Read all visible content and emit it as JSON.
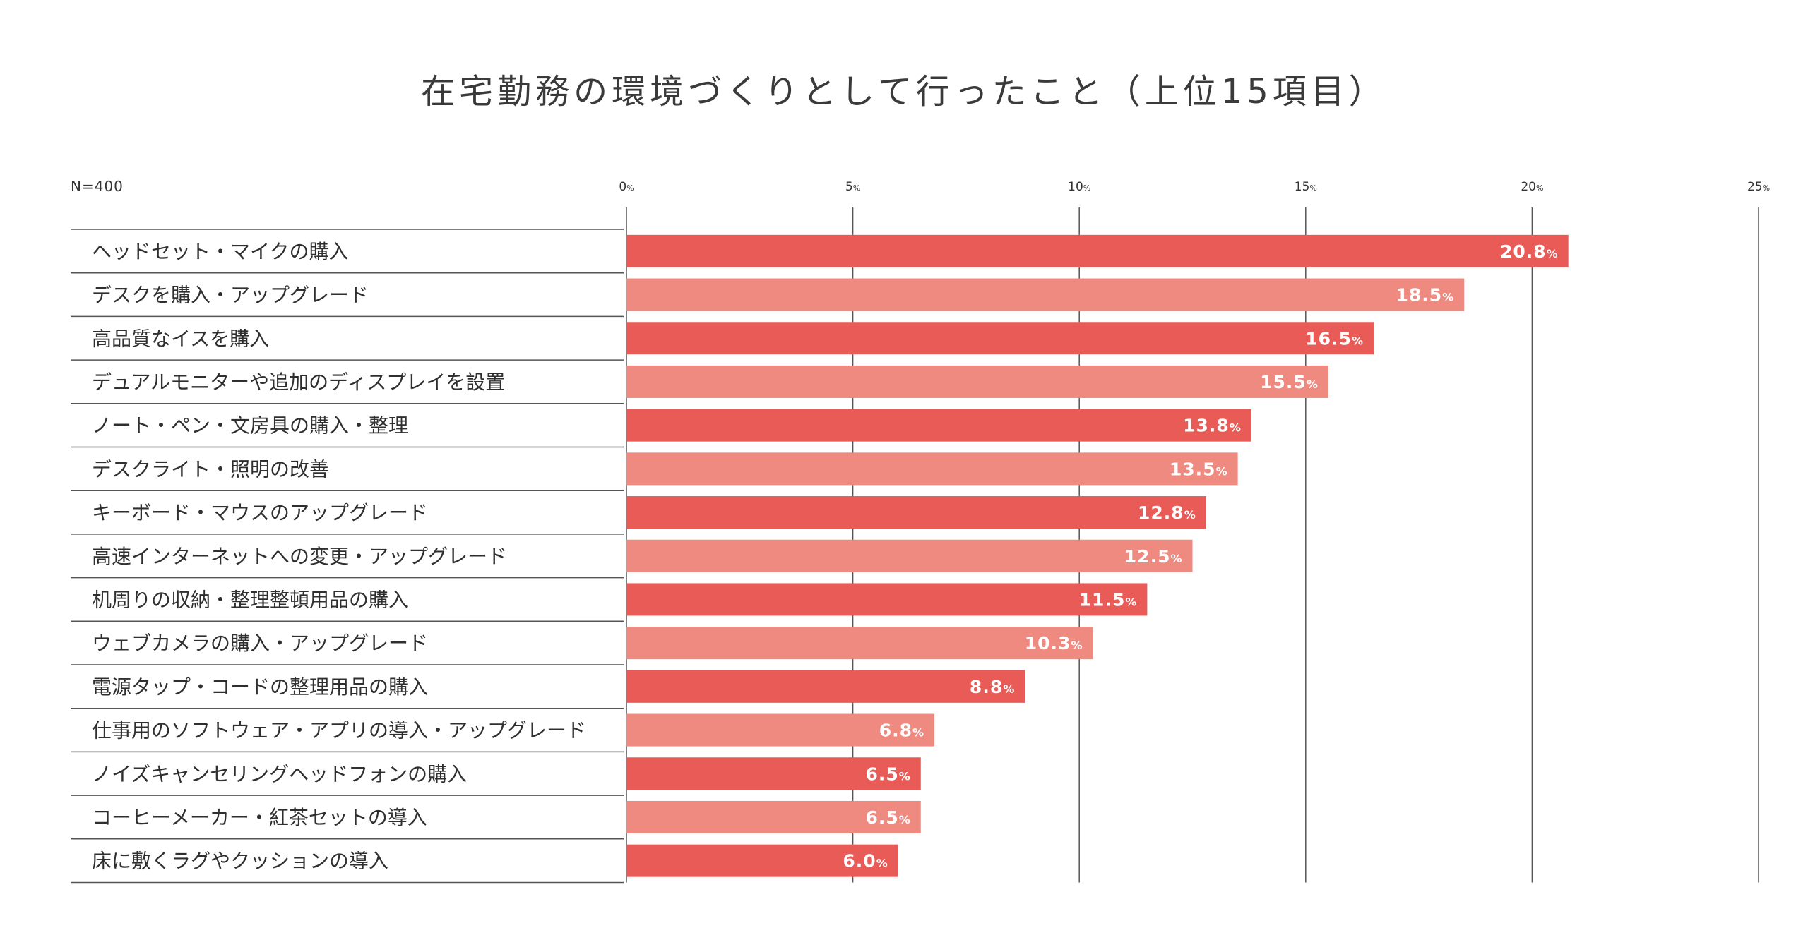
{
  "chart_data": {
    "type": "bar",
    "orientation": "horizontal",
    "title": "在宅勤務の環境づくりとして行ったこと（上位15項目）",
    "sample_size": "N=400",
    "unit": "%",
    "xlim": [
      0,
      25
    ],
    "xticks": [
      0,
      5,
      10,
      15,
      20,
      25
    ],
    "grid": true,
    "categories": [
      "ヘッドセット・マイクの購入",
      "デスクを購入・アップグレード",
      "高品質なイスを購入",
      "デュアルモニターや追加のディスプレイを設置",
      "ノート・ペン・文房具の購入・整理",
      "デスクライト・照明の改善",
      "キーボード・マウスのアップグレード",
      "高速インターネットへの変更・アップグレード",
      "机周りの収納・整理整頓用品の購入",
      "ウェブカメラの購入・アップグレード",
      "電源タップ・コードの整理用品の購入",
      "仕事用のソフトウェア・アプリの導入・アップグレード",
      "ノイズキャンセリングヘッドフォンの購入",
      "コーヒーメーカー・紅茶セットの導入",
      "床に敷くラグやクッションの導入"
    ],
    "values": [
      20.8,
      18.5,
      16.5,
      15.5,
      13.8,
      13.5,
      12.8,
      12.5,
      11.5,
      10.3,
      8.8,
      6.8,
      6.5,
      6.5,
      6.0
    ],
    "value_labels": [
      "20.8",
      "18.5",
      "16.5",
      "15.5",
      "13.8",
      "13.5",
      "12.8",
      "12.5",
      "11.5",
      "10.3",
      "8.8",
      "6.8",
      "6.5",
      "6.5",
      "6.0"
    ],
    "colors": {
      "primary": "#e85b56",
      "secondary": "#ee8a80",
      "grid": "#555555",
      "text": "#333333"
    }
  }
}
